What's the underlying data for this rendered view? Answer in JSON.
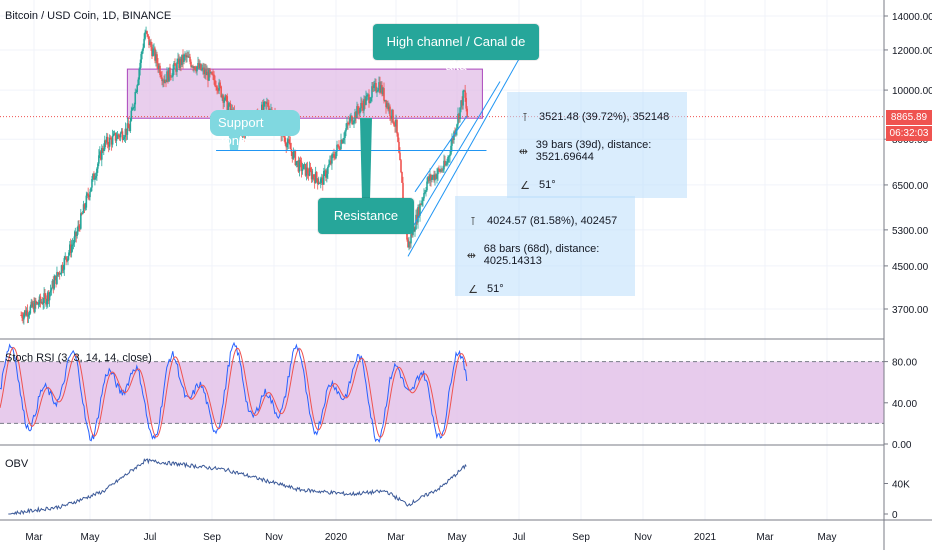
{
  "header": {
    "title": "Bitcoin / USD Coin, 1D, BINANCE"
  },
  "annotations": {
    "high_channel": "High channel / Canal de alta",
    "support_zone": "Support zone",
    "resistance_zone": "Resistance zone"
  },
  "measure_1": {
    "price_range": "3521.48 (39.72%), 352148",
    "bars_range": "39 bars (39d), distance: 3521.69644",
    "angle": "51°"
  },
  "measure_2": {
    "price_range": "4024.57 (81.58%), 402457",
    "bars_range": "68 bars (68d), distance: 4025.14313",
    "angle": "51°"
  },
  "price_badges": {
    "last_price": "8865.89",
    "countdown": "06:32:03"
  },
  "indicators": {
    "stoch_rsi_label": "Stoch RSI (3, 3, 14, 14, close)",
    "obv_label": "OBV"
  },
  "colors": {
    "up": "#26a69a",
    "down": "#ef5350",
    "zone_fill": "#e1bee7",
    "rsi_k": "#2962ff",
    "rsi_d": "#ef5350",
    "obv_line": "#3c5a99",
    "badge": "#ef5350",
    "channel_line": "#2196f3"
  },
  "chart_data": [
    {
      "type": "candlestick",
      "title": "Bitcoin / USD Coin, 1D, BINANCE",
      "yscale": "log",
      "y_ticks": [
        "14000.00",
        "12000.00",
        "10000.00",
        "8000.00",
        "6500.00",
        "5300.00",
        "4500.00",
        "3700.00"
      ],
      "y_tick_values": [
        14000,
        12000,
        10000,
        8000,
        6500,
        5300,
        4500,
        3700
      ],
      "ylim": [
        3300,
        16500
      ],
      "x_ticks": [
        "Mar",
        "May",
        "Jul",
        "Sep",
        "Nov",
        "2020",
        "Mar",
        "May",
        "Jul",
        "Sep",
        "Nov",
        "2021",
        "Mar",
        "May"
      ],
      "resistance_zone_price": [
        8800,
        11000
      ],
      "support_line_price": 7600,
      "approx_close_path": [
        {
          "x": "2019-02-15",
          "y": 3600
        },
        {
          "x": "2019-03-15",
          "y": 3900
        },
        {
          "x": "2019-04-15",
          "y": 5100
        },
        {
          "x": "2019-05-15",
          "y": 7800
        },
        {
          "x": "2019-06-10",
          "y": 8400
        },
        {
          "x": "2019-06-26",
          "y": 13000
        },
        {
          "x": "2019-07-15",
          "y": 10500
        },
        {
          "x": "2019-08-05",
          "y": 11600
        },
        {
          "x": "2019-09-05",
          "y": 10400
        },
        {
          "x": "2019-09-30",
          "y": 8200
        },
        {
          "x": "2019-10-26",
          "y": 9400
        },
        {
          "x": "2019-11-25",
          "y": 7100
        },
        {
          "x": "2019-12-18",
          "y": 6600
        },
        {
          "x": "2020-01-15",
          "y": 8700
        },
        {
          "x": "2020-02-13",
          "y": 10300
        },
        {
          "x": "2020-03-01",
          "y": 8500
        },
        {
          "x": "2020-03-13",
          "y": 4900
        },
        {
          "x": "2020-04-01",
          "y": 6600
        },
        {
          "x": "2020-04-20",
          "y": 7100
        },
        {
          "x": "2020-05-08",
          "y": 9900
        },
        {
          "x": "2020-05-11",
          "y": 8865.89
        }
      ]
    },
    {
      "type": "line",
      "title": "Stoch RSI (3, 3, 14, 14, close)",
      "y_ticks": [
        "80.00",
        "40.00",
        "0.00"
      ],
      "y_tick_values": [
        80,
        40,
        0
      ],
      "ylim": [
        0,
        100
      ],
      "band": [
        20,
        80
      ]
    },
    {
      "type": "line",
      "title": "OBV",
      "y_ticks": [
        "40K",
        "0"
      ],
      "y_tick_values": [
        40000,
        0
      ],
      "approx_path": [
        {
          "x": "2019-02-01",
          "y": 0
        },
        {
          "x": "2019-04-01",
          "y": 10000
        },
        {
          "x": "2019-05-15",
          "y": 30000
        },
        {
          "x": "2019-06-26",
          "y": 70000
        },
        {
          "x": "2019-08-01",
          "y": 65000
        },
        {
          "x": "2019-09-15",
          "y": 58000
        },
        {
          "x": "2019-11-25",
          "y": 32000
        },
        {
          "x": "2020-01-15",
          "y": 26000
        },
        {
          "x": "2020-02-20",
          "y": 30000
        },
        {
          "x": "2020-03-13",
          "y": 12000
        },
        {
          "x": "2020-04-15",
          "y": 35000
        },
        {
          "x": "2020-05-11",
          "y": 65000
        }
      ]
    }
  ]
}
